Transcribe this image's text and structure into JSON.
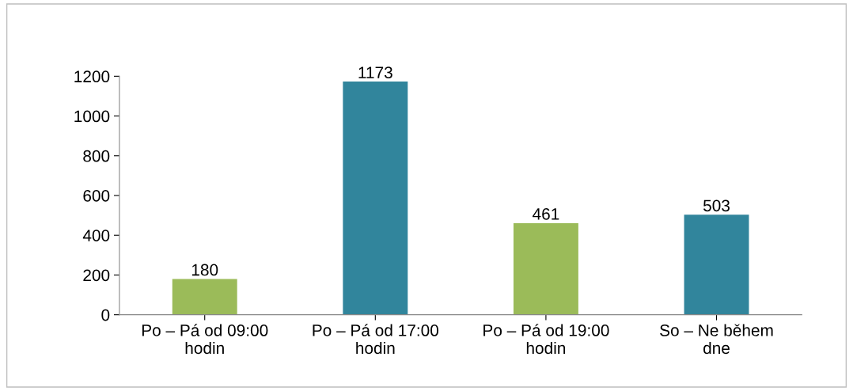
{
  "chart_data": {
    "type": "bar",
    "categories": [
      "Po – Pá od 09:00\nhodin",
      "Po – Pá od 17:00\nhodin",
      "Po – Pá od 19:00\nhodin",
      "So – Ne během\ndne"
    ],
    "values": [
      180,
      1173,
      461,
      503
    ],
    "colors": [
      "#9bbb59",
      "#31859c",
      "#9bbb59",
      "#31859c"
    ],
    "ylim": [
      0,
      1200
    ],
    "yticks": [
      0,
      200,
      400,
      600,
      800,
      1000,
      1200
    ],
    "grid": false,
    "data_labels": true
  }
}
